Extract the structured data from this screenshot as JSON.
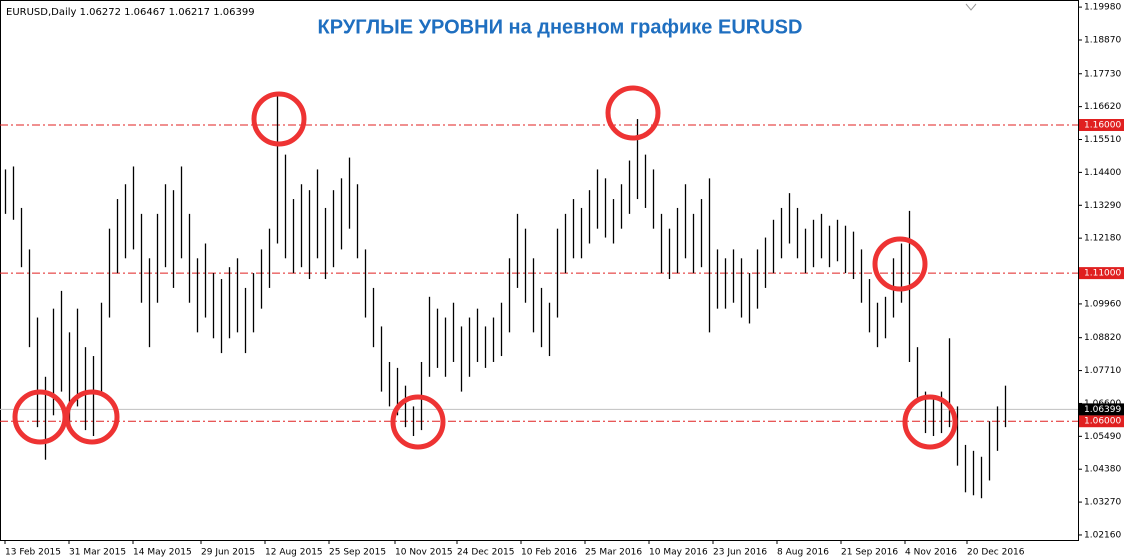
{
  "chart_data": {
    "type": "ohlc-range",
    "title": "КРУГЛЫЕ УРОВНИ на дневном графике EURUSD",
    "info": "EURUSD,Daily  1.06272 1.06467 1.06217 1.06399",
    "color": "#000000",
    "xlim": [
      -2.5,
      536.5
    ],
    "ylim": [
      1.0199,
      1.2022
    ],
    "xticks": [
      {
        "value": 0,
        "label": "13 Feb 2015"
      },
      {
        "value": 32,
        "label": "31 Mar 2015"
      },
      {
        "value": 64,
        "label": "14 May 2015"
      },
      {
        "value": 98,
        "label": "29 Jun 2015"
      },
      {
        "value": 130,
        "label": "12 Aug 2015"
      },
      {
        "value": 162,
        "label": "25 Sep 2015"
      },
      {
        "value": 195,
        "label": "10 Nov 2015"
      },
      {
        "value": 226,
        "label": "24 Dec 2015"
      },
      {
        "value": 258,
        "label": "10 Feb 2016"
      },
      {
        "value": 290,
        "label": "25 Mar 2016"
      },
      {
        "value": 322,
        "label": "10 May 2016"
      },
      {
        "value": 354,
        "label": "23 Jun 2016"
      },
      {
        "value": 386,
        "label": "8 Aug 2016"
      },
      {
        "value": 418,
        "label": "21 Sep 2016"
      },
      {
        "value": 450,
        "label": "4 Nov 2016"
      },
      {
        "value": 481,
        "label": "20 Dec 2016"
      }
    ],
    "yticks": [
      {
        "value": 1.1998,
        "label": "1.19980"
      },
      {
        "value": 1.1887,
        "label": "1.18870"
      },
      {
        "value": 1.1773,
        "label": "1.17730"
      },
      {
        "value": 1.1662,
        "label": "1.16620"
      },
      {
        "value": 1.1551,
        "label": "1.15510"
      },
      {
        "value": 1.144,
        "label": "1.14400"
      },
      {
        "value": 1.1329,
        "label": "1.13290"
      },
      {
        "value": 1.1218,
        "label": "1.12180"
      },
      {
        "value": 1.1106,
        "label": "1.11060"
      },
      {
        "value": 1.0996,
        "label": "1.09960"
      },
      {
        "value": 1.0882,
        "label": "1.08820"
      },
      {
        "value": 1.0771,
        "label": "1.07710"
      },
      {
        "value": 1.066,
        "label": "1.06600"
      },
      {
        "value": 1.0549,
        "label": "1.05490"
      },
      {
        "value": 1.0438,
        "label": "1.04380"
      },
      {
        "value": 1.0327,
        "label": "1.03270"
      },
      {
        "value": 1.0216,
        "label": "1.02160"
      }
    ],
    "levels": [
      {
        "value": 1.16,
        "label": "1.16000",
        "color": "#e02020"
      },
      {
        "value": 1.11,
        "label": "1.11000",
        "color": "#e02020"
      },
      {
        "value": 1.06,
        "label": "1.06000",
        "color": "#e02020"
      }
    ],
    "current": {
      "value": 1.06399,
      "label": "1.06399",
      "color": "#000000"
    },
    "x": [
      0,
      4,
      8,
      12,
      16,
      20,
      24,
      28,
      32,
      36,
      40,
      44,
      48,
      52,
      56,
      60,
      64,
      68,
      72,
      76,
      80,
      84,
      88,
      92,
      96,
      100,
      104,
      108,
      112,
      116,
      120,
      124,
      128,
      132,
      136,
      140,
      144,
      148,
      152,
      156,
      160,
      164,
      168,
      172,
      176,
      180,
      184,
      188,
      192,
      196,
      200,
      204,
      208,
      212,
      216,
      220,
      224,
      228,
      232,
      236,
      240,
      244,
      248,
      252,
      256,
      260,
      264,
      268,
      272,
      276,
      280,
      284,
      288,
      292,
      296,
      300,
      304,
      308,
      312,
      316,
      320,
      324,
      328,
      332,
      336,
      340,
      344,
      348,
      352,
      356,
      360,
      364,
      368,
      372,
      376,
      380,
      384,
      388,
      392,
      396,
      400,
      404,
      408,
      412,
      416,
      420,
      424,
      428,
      432,
      436,
      440,
      444,
      448,
      452,
      456,
      460,
      464,
      468,
      472,
      476,
      480,
      484,
      488,
      492,
      496,
      500
    ],
    "high": [
      1.145,
      1.146,
      1.132,
      1.118,
      1.095,
      1.075,
      1.098,
      1.104,
      1.09,
      1.098,
      1.085,
      1.082,
      1.1,
      1.125,
      1.135,
      1.14,
      1.146,
      1.13,
      1.115,
      1.13,
      1.14,
      1.138,
      1.146,
      1.13,
      1.115,
      1.12,
      1.11,
      1.108,
      1.112,
      1.115,
      1.105,
      1.11,
      1.118,
      1.125,
      1.171,
      1.15,
      1.135,
      1.14,
      1.138,
      1.145,
      1.132,
      1.138,
      1.142,
      1.149,
      1.14,
      1.118,
      1.105,
      1.092,
      1.08,
      1.078,
      1.072,
      1.065,
      1.08,
      1.102,
      1.098,
      1.095,
      1.1,
      1.092,
      1.095,
      1.098,
      1.092,
      1.095,
      1.1,
      1.115,
      1.13,
      1.125,
      1.115,
      1.105,
      1.1,
      1.125,
      1.13,
      1.135,
      1.132,
      1.138,
      1.145,
      1.142,
      1.135,
      1.14,
      1.148,
      1.162,
      1.15,
      1.145,
      1.13,
      1.125,
      1.132,
      1.14,
      1.13,
      1.135,
      1.142,
      1.118,
      1.115,
      1.118,
      1.115,
      1.11,
      1.118,
      1.122,
      1.128,
      1.132,
      1.137,
      1.132,
      1.125,
      1.128,
      1.13,
      1.126,
      1.128,
      1.126,
      1.124,
      1.118,
      1.108,
      1.1,
      1.102,
      1.115,
      1.12,
      1.131,
      1.085,
      1.07,
      1.068,
      1.07,
      1.088,
      1.065,
      1.052,
      1.05,
      1.048,
      1.06,
      1.065,
      1.072
    ],
    "low": [
      1.13,
      1.128,
      1.112,
      1.085,
      1.058,
      1.047,
      1.062,
      1.07,
      1.058,
      1.065,
      1.057,
      1.055,
      1.07,
      1.095,
      1.11,
      1.115,
      1.118,
      1.1,
      1.085,
      1.1,
      1.112,
      1.105,
      1.115,
      1.1,
      1.09,
      1.095,
      1.088,
      1.083,
      1.088,
      1.09,
      1.083,
      1.09,
      1.098,
      1.105,
      1.12,
      1.115,
      1.11,
      1.112,
      1.108,
      1.115,
      1.108,
      1.112,
      1.118,
      1.125,
      1.115,
      1.095,
      1.085,
      1.07,
      1.065,
      1.062,
      1.058,
      1.055,
      1.057,
      1.075,
      1.078,
      1.075,
      1.08,
      1.07,
      1.075,
      1.08,
      1.078,
      1.08,
      1.082,
      1.09,
      1.105,
      1.1,
      1.09,
      1.085,
      1.082,
      1.095,
      1.11,
      1.115,
      1.115,
      1.12,
      1.125,
      1.122,
      1.12,
      1.125,
      1.13,
      1.135,
      1.132,
      1.125,
      1.11,
      1.108,
      1.11,
      1.115,
      1.11,
      1.112,
      1.09,
      1.098,
      1.098,
      1.1,
      1.095,
      1.093,
      1.098,
      1.105,
      1.11,
      1.115,
      1.12,
      1.115,
      1.11,
      1.112,
      1.115,
      1.112,
      1.114,
      1.11,
      1.108,
      1.1,
      1.09,
      1.085,
      1.088,
      1.095,
      1.1,
      1.08,
      1.068,
      1.056,
      1.055,
      1.056,
      1.058,
      1.045,
      1.036,
      1.035,
      1.034,
      1.04,
      1.05,
      1.058
    ]
  }
}
